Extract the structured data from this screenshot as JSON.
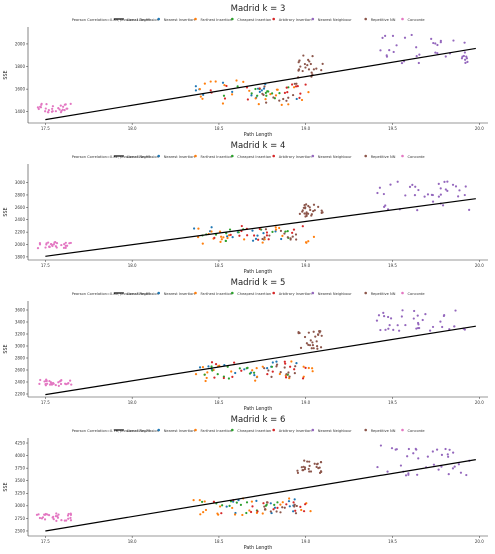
{
  "figure": {
    "legend_entries": [
      {
        "label": "Pearson Correlation=0.84, p-value=1.2e-95",
        "kind": "none"
      },
      {
        "label": "Linear Regression",
        "kind": "line",
        "color": "#000000"
      },
      {
        "label": "Nearest Insertion",
        "kind": "dot",
        "color": "#1f77b4"
      },
      {
        "label": "Farthest Insertion",
        "kind": "dot",
        "color": "#ff7f0e"
      },
      {
        "label": "Cheapest Insertion",
        "kind": "dot",
        "color": "#2ca02c"
      },
      {
        "label": "Arbitrary Insertion",
        "kind": "dot",
        "color": "#d62728"
      },
      {
        "label": "Nearest Neighbour",
        "kind": "dot",
        "color": "#9467bd"
      },
      {
        "label": "Repetitive NN",
        "kind": "dot",
        "color": "#8c564b"
      },
      {
        "label": "Concorde",
        "kind": "dot",
        "color": "#e377c2"
      }
    ]
  },
  "chart_data": [
    {
      "type": "scatter",
      "title": "Madrid k = 3",
      "xlabel": "Path Length",
      "ylabel": "SSE",
      "pearson_label": "Pearson Correlation=0.84, p-value=1.2e-95",
      "xlim": [
        17.4,
        20.05
      ],
      "ylim": [
        1300,
        2150
      ],
      "x_ticks": [
        "17.5",
        "18.0",
        "18.5",
        "19.0",
        "19.5",
        "20.0"
      ],
      "x_tick_values": [
        17.5,
        18.0,
        18.5,
        19.0,
        19.5,
        20.0
      ],
      "y_ticks": [
        "1400",
        "1600",
        "1800",
        "2000"
      ],
      "y_tick_values": [
        1400,
        1600,
        1800,
        2000
      ],
      "regression": {
        "x": [
          17.5,
          19.98
        ],
        "y": [
          1330,
          1960
        ]
      },
      "series": [
        {
          "name": "Concorde",
          "color": "#e377c2",
          "clusters": [
            {
              "x_range": [
                17.45,
                17.65
              ],
              "y_range": [
                1390,
                1470
              ],
              "n": 30
            }
          ]
        },
        {
          "name": "Nearest Insertion",
          "color": "#1f77b4",
          "clusters": [
            {
              "x_range": [
                18.35,
                18.95
              ],
              "y_range": [
                1500,
                1660
              ],
              "n": 14
            }
          ]
        },
        {
          "name": "Farthest Insertion",
          "color": "#ff7f0e",
          "clusters": [
            {
              "x_range": [
                18.35,
                19.05
              ],
              "y_range": [
                1460,
                1680
              ],
              "n": 24
            }
          ]
        },
        {
          "name": "Cheapest Insertion",
          "color": "#2ca02c",
          "clusters": [
            {
              "x_range": [
                18.4,
                18.9
              ],
              "y_range": [
                1500,
                1660
              ],
              "n": 14
            }
          ]
        },
        {
          "name": "Arbitrary Insertion",
          "color": "#d62728",
          "clusters": [
            {
              "x_range": [
                18.45,
                19.0
              ],
              "y_range": [
                1500,
                1650
              ],
              "n": 16
            }
          ]
        },
        {
          "name": "Nearest Neighbour",
          "color": "#9467bd",
          "clusters": [
            {
              "x_range": [
                19.4,
                19.95
              ],
              "y_range": [
                1830,
                2100
              ],
              "n": 38
            }
          ]
        },
        {
          "name": "Repetitive NN",
          "color": "#8c564b",
          "clusters": [
            {
              "x_range": [
                18.75,
                18.95
              ],
              "y_range": [
                1480,
                1650
              ],
              "n": 12
            },
            {
              "x_range": [
                18.95,
                19.1
              ],
              "y_range": [
                1700,
                1900
              ],
              "n": 26
            }
          ]
        }
      ]
    },
    {
      "type": "scatter",
      "title": "Madrid k = 4",
      "xlabel": "Path Length",
      "ylabel": "SSE",
      "pearson_label": "Pearson Correlation=0.81, p-value=6.4e-93",
      "xlim": [
        17.4,
        20.05
      ],
      "ylim": [
        1750,
        3300
      ],
      "x_ticks": [
        "17.5",
        "18.0",
        "18.5",
        "19.0",
        "19.5",
        "20.0"
      ],
      "x_tick_values": [
        17.5,
        18.0,
        18.5,
        19.0,
        19.5,
        20.0
      ],
      "y_ticks": [
        "1800",
        "2000",
        "2200",
        "2400",
        "2600",
        "2800",
        "3000"
      ],
      "y_tick_values": [
        1800,
        2000,
        2200,
        2400,
        2600,
        2800,
        3000
      ],
      "regression": {
        "x": [
          17.5,
          19.98
        ],
        "y": [
          1810,
          2740
        ]
      },
      "series": [
        {
          "name": "Concorde",
          "color": "#e377c2",
          "clusters": [
            {
              "x_range": [
                17.45,
                17.65
              ],
              "y_range": [
                1940,
                2040
              ],
              "n": 30
            }
          ]
        },
        {
          "name": "Nearest Insertion",
          "color": "#1f77b4",
          "clusters": [
            {
              "x_range": [
                18.35,
                18.95
              ],
              "y_range": [
                2050,
                2300
              ],
              "n": 14
            }
          ]
        },
        {
          "name": "Farthest Insertion",
          "color": "#ff7f0e",
          "clusters": [
            {
              "x_range": [
                18.35,
                19.05
              ],
              "y_range": [
                2000,
                2300
              ],
              "n": 24
            }
          ]
        },
        {
          "name": "Cheapest Insertion",
          "color": "#2ca02c",
          "clusters": [
            {
              "x_range": [
                18.4,
                18.9
              ],
              "y_range": [
                2050,
                2250
              ],
              "n": 14
            }
          ]
        },
        {
          "name": "Arbitrary Insertion",
          "color": "#d62728",
          "clusters": [
            {
              "x_range": [
                18.45,
                19.0
              ],
              "y_range": [
                2050,
                2300
              ],
              "n": 16
            }
          ]
        },
        {
          "name": "Nearest Neighbour",
          "color": "#9467bd",
          "clusters": [
            {
              "x_range": [
                19.4,
                19.95
              ],
              "y_range": [
                2550,
                3050
              ],
              "n": 38
            }
          ]
        },
        {
          "name": "Repetitive NN",
          "color": "#8c564b",
          "clusters": [
            {
              "x_range": [
                18.75,
                18.95
              ],
              "y_range": [
                2050,
                2250
              ],
              "n": 12
            },
            {
              "x_range": [
                18.95,
                19.1
              ],
              "y_range": [
                2450,
                2650
              ],
              "n": 26
            }
          ]
        }
      ]
    },
    {
      "type": "scatter",
      "title": "Madrid k = 5",
      "xlabel": "Path Length",
      "ylabel": "SSE",
      "pearson_label": "Pearson Correlation=0.80, p-value=8.9e-83",
      "xlim": [
        17.4,
        20.05
      ],
      "ylim": [
        2150,
        3750
      ],
      "x_ticks": [
        "17.5",
        "18.0",
        "18.5",
        "19.0",
        "19.5",
        "20.0"
      ],
      "x_tick_values": [
        17.5,
        18.0,
        18.5,
        19.0,
        19.5,
        20.0
      ],
      "y_ticks": [
        "2200",
        "2400",
        "2600",
        "2800",
        "3000",
        "3200",
        "3400",
        "3600"
      ],
      "y_tick_values": [
        2200,
        2400,
        2600,
        2800,
        3000,
        3200,
        3400,
        3600
      ],
      "regression": {
        "x": [
          17.5,
          19.98
        ],
        "y": [
          2190,
          3330
        ]
      },
      "series": [
        {
          "name": "Concorde",
          "color": "#e377c2",
          "clusters": [
            {
              "x_range": [
                17.45,
                17.65
              ],
              "y_range": [
                2330,
                2450
              ],
              "n": 30
            }
          ]
        },
        {
          "name": "Nearest Insertion",
          "color": "#1f77b4",
          "clusters": [
            {
              "x_range": [
                18.35,
                18.95
              ],
              "y_range": [
                2450,
                2750
              ],
              "n": 14
            }
          ]
        },
        {
          "name": "Farthest Insertion",
          "color": "#ff7f0e",
          "clusters": [
            {
              "x_range": [
                18.35,
                19.05
              ],
              "y_range": [
                2400,
                2750
              ],
              "n": 24
            }
          ]
        },
        {
          "name": "Cheapest Insertion",
          "color": "#2ca02c",
          "clusters": [
            {
              "x_range": [
                18.4,
                18.9
              ],
              "y_range": [
                2450,
                2700
              ],
              "n": 14
            }
          ]
        },
        {
          "name": "Arbitrary Insertion",
          "color": "#d62728",
          "clusters": [
            {
              "x_range": [
                18.45,
                19.0
              ],
              "y_range": [
                2450,
                2750
              ],
              "n": 16
            }
          ]
        },
        {
          "name": "Nearest Neighbour",
          "color": "#9467bd",
          "clusters": [
            {
              "x_range": [
                19.4,
                19.95
              ],
              "y_range": [
                3150,
                3600
              ],
              "n": 38
            }
          ]
        },
        {
          "name": "Repetitive NN",
          "color": "#8c564b",
          "clusters": [
            {
              "x_range": [
                18.75,
                18.95
              ],
              "y_range": [
                2450,
                2700
              ],
              "n": 12
            },
            {
              "x_range": [
                18.95,
                19.1
              ],
              "y_range": [
                2950,
                3250
              ],
              "n": 26
            }
          ]
        }
      ]
    },
    {
      "type": "scatter",
      "title": "Madrid k = 6",
      "xlabel": "Path Length",
      "ylabel": "SSE",
      "pearson_label": "Pearson Correlation=0.78, p-value=6.5e-73",
      "xlim": [
        17.4,
        20.05
      ],
      "ylim": [
        2400,
        4350
      ],
      "x_ticks": [
        "17.5",
        "18.0",
        "18.5",
        "19.0",
        "19.5",
        "20.0"
      ],
      "x_tick_values": [
        17.5,
        18.0,
        18.5,
        19.0,
        19.5,
        20.0
      ],
      "y_ticks": [
        "2500",
        "2750",
        "3000",
        "3250",
        "3500",
        "3750",
        "4000",
        "4250"
      ],
      "y_tick_values": [
        2500,
        2750,
        3000,
        3250,
        3500,
        3750,
        4000,
        4250
      ],
      "regression": {
        "x": [
          17.5,
          19.98
        ],
        "y": [
          2500,
          3920
        ]
      },
      "series": [
        {
          "name": "Concorde",
          "color": "#e377c2",
          "clusters": [
            {
              "x_range": [
                17.45,
                17.65
              ],
              "y_range": [
                2700,
                2850
              ],
              "n": 30
            }
          ]
        },
        {
          "name": "Nearest Insertion",
          "color": "#1f77b4",
          "clusters": [
            {
              "x_range": [
                18.35,
                18.95
              ],
              "y_range": [
                2850,
                3150
              ],
              "n": 14
            }
          ]
        },
        {
          "name": "Farthest Insertion",
          "color": "#ff7f0e",
          "clusters": [
            {
              "x_range": [
                18.35,
                19.05
              ],
              "y_range": [
                2800,
                3150
              ],
              "n": 24
            }
          ]
        },
        {
          "name": "Cheapest Insertion",
          "color": "#2ca02c",
          "clusters": [
            {
              "x_range": [
                18.4,
                18.9
              ],
              "y_range": [
                2850,
                3100
              ],
              "n": 14
            }
          ]
        },
        {
          "name": "Arbitrary Insertion",
          "color": "#d62728",
          "clusters": [
            {
              "x_range": [
                18.45,
                19.0
              ],
              "y_range": [
                2850,
                3150
              ],
              "n": 16
            }
          ]
        },
        {
          "name": "Nearest Neighbour",
          "color": "#9467bd",
          "clusters": [
            {
              "x_range": [
                19.4,
                19.95
              ],
              "y_range": [
                3600,
                4200
              ],
              "n": 38
            }
          ]
        },
        {
          "name": "Repetitive NN",
          "color": "#8c564b",
          "clusters": [
            {
              "x_range": [
                18.75,
                18.95
              ],
              "y_range": [
                2850,
                3100
              ],
              "n": 12
            },
            {
              "x_range": [
                18.95,
                19.1
              ],
              "y_range": [
                3650,
                3900
              ],
              "n": 26
            }
          ]
        }
      ]
    }
  ]
}
